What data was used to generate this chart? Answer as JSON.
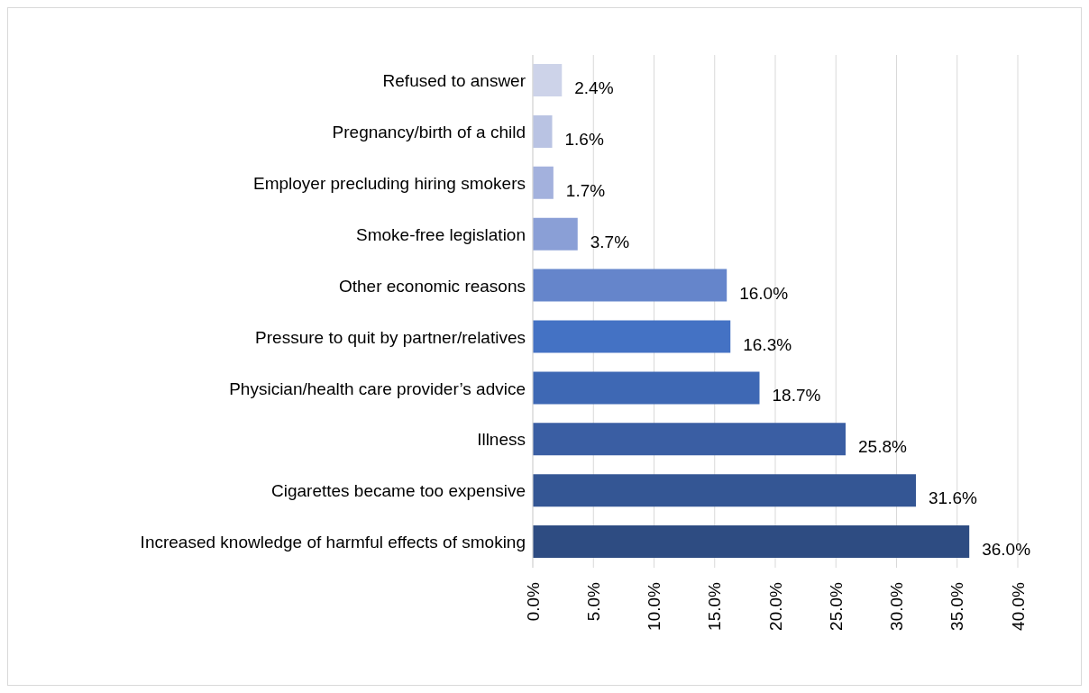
{
  "chart_data": {
    "type": "bar",
    "orientation": "horizontal",
    "categories": [
      "Refused to answer",
      "Pregnancy/birth of a child",
      "Employer precluding hiring smokers",
      "Smoke-free legislation",
      "Other economic reasons",
      "Pressure to quit by partner/relatives",
      "Physician/health care provider’s advice",
      "Illness",
      "Cigarettes became too expensive",
      "Increased knowledge of harmful effects of smoking"
    ],
    "values": [
      2.4,
      1.6,
      1.7,
      3.7,
      16.0,
      16.3,
      18.7,
      25.8,
      31.6,
      36.0
    ],
    "colors": [
      "#cdd3e9",
      "#b9c3e3",
      "#a3b1dd",
      "#8a9fd6",
      "#6585cb",
      "#4472c4",
      "#3e68b4",
      "#3a5ea3",
      "#345694",
      "#2e4c82"
    ],
    "value_labels": [
      "2.4%",
      "1.6%",
      "1.7%",
      "3.7%",
      "16.0%",
      "16.3%",
      "18.7%",
      "25.8%",
      "31.6%",
      "36.0%"
    ],
    "xlim": [
      0,
      40
    ],
    "xticks": [
      {
        "value": 0,
        "label": "0.0%"
      },
      {
        "value": 5,
        "label": "5.0%"
      },
      {
        "value": 10,
        "label": "10.0%"
      },
      {
        "value": 15,
        "label": "15.0%"
      },
      {
        "value": 20,
        "label": "20.0%"
      },
      {
        "value": 25,
        "label": "25.0%"
      },
      {
        "value": 30,
        "label": "30.0%"
      },
      {
        "value": 35,
        "label": "35.0%"
      },
      {
        "value": 40,
        "label": "40.0%"
      }
    ],
    "grid": "x"
  }
}
